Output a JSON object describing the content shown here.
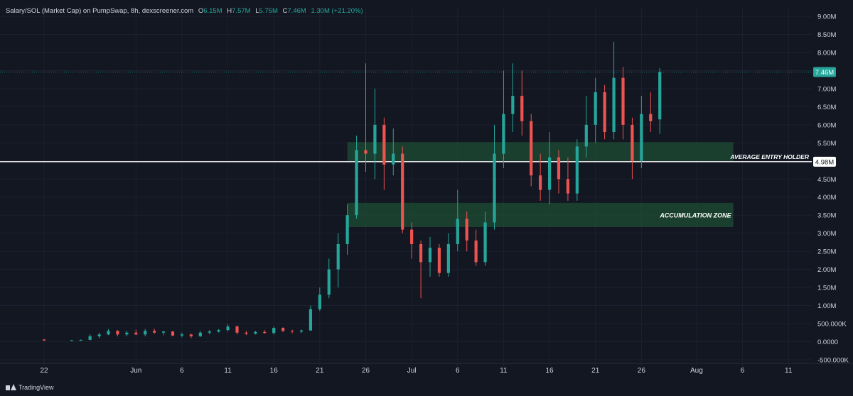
{
  "header": {
    "title": "Salary/SOL (Market Cap) on PumpSwap, 8h, dexscreener.com",
    "o_label": "O",
    "o_value": "6.15M",
    "h_label": "H",
    "h_value": "7.57M",
    "l_label": "L",
    "l_value": "5.75M",
    "c_label": "C",
    "c_value": "7.46M",
    "change": "1.30M (+21.20%)"
  },
  "footer": {
    "brand": "TradingView"
  },
  "colors": {
    "background": "#131722",
    "up": "#26a69a",
    "down": "#ef5350",
    "zone": "#1e4d33",
    "text": "#d1d4dc",
    "price_badge": "#26a69a",
    "entry_line": "#ffffff"
  },
  "chart_data": {
    "type": "candlestick",
    "title": "Salary/SOL (Market Cap) on PumpSwap, 8h, dexscreener.com",
    "xlabel": "",
    "ylabel": "",
    "x_range": [
      "2025-05-22",
      "2025-08-14"
    ],
    "ylim": [
      -600000,
      9100000
    ],
    "y_ticks": [
      "9.00M",
      "8.50M",
      "8.00M",
      "7.50M",
      "7.00M",
      "6.50M",
      "6.00M",
      "5.50M",
      "5.00M",
      "4.50M",
      "4.00M",
      "3.50M",
      "3.00M",
      "2.50M",
      "2.00M",
      "1.50M",
      "1.00M",
      "500.000K",
      "0.0000",
      "-500.000K"
    ],
    "y_tick_values": [
      9000000,
      8500000,
      8000000,
      7500000,
      7000000,
      6500000,
      6000000,
      5500000,
      5000000,
      4500000,
      4000000,
      3500000,
      3000000,
      2500000,
      2000000,
      1500000,
      1000000,
      500000,
      0,
      -500000
    ],
    "x_ticks": [
      {
        "label": "22",
        "date": "2025-05-22"
      },
      {
        "label": "Jun",
        "date": "2025-06-01"
      },
      {
        "label": "6",
        "date": "2025-06-06"
      },
      {
        "label": "11",
        "date": "2025-06-11"
      },
      {
        "label": "16",
        "date": "2025-06-16"
      },
      {
        "label": "21",
        "date": "2025-06-21"
      },
      {
        "label": "26",
        "date": "2025-06-26"
      },
      {
        "label": "Jul",
        "date": "2025-07-01"
      },
      {
        "label": "6",
        "date": "2025-07-06"
      },
      {
        "label": "11",
        "date": "2025-07-11"
      },
      {
        "label": "16",
        "date": "2025-07-16"
      },
      {
        "label": "21",
        "date": "2025-07-21"
      },
      {
        "label": "26",
        "date": "2025-07-26"
      },
      {
        "label": "Aug",
        "date": "2025-08-01"
      },
      {
        "label": "6",
        "date": "2025-08-06"
      },
      {
        "label": "11",
        "date": "2025-08-11"
      }
    ],
    "zones": [
      {
        "label": "",
        "from_date": "2025-06-24",
        "to_date": "2025-08-05",
        "low": 5000000,
        "high": 5520000
      },
      {
        "label": "ACCUMULATION ZONE",
        "from_date": "2025-06-24",
        "to_date": "2025-08-05",
        "low": 3170000,
        "high": 3840000
      }
    ],
    "hlines": [
      {
        "label": "AVERAGE ENTRY HOLDER",
        "value": 4980000,
        "badge": "4.98M"
      }
    ],
    "last_price": {
      "value": 7460000,
      "badge": "7.46M"
    },
    "candles": [
      [
        "2025-05-22",
        60000,
        70000,
        40000,
        30000
      ],
      [
        "2025-05-25",
        30000,
        50000,
        20000,
        35000
      ],
      [
        "2025-05-26",
        35000,
        60000,
        20000,
        50000
      ],
      [
        "2025-05-27",
        50000,
        200000,
        40000,
        150000
      ],
      [
        "2025-05-28",
        150000,
        250000,
        100000,
        200000
      ],
      [
        "2025-05-29",
        200000,
        350000,
        180000,
        300000
      ],
      [
        "2025-05-30",
        300000,
        320000,
        150000,
        200000
      ],
      [
        "2025-05-31",
        200000,
        300000,
        150000,
        250000
      ],
      [
        "2025-06-01",
        250000,
        330000,
        180000,
        200000
      ],
      [
        "2025-06-02",
        200000,
        350000,
        150000,
        300000
      ],
      [
        "2025-06-03",
        300000,
        360000,
        220000,
        250000
      ],
      [
        "2025-06-04",
        250000,
        300000,
        180000,
        280000
      ],
      [
        "2025-06-05",
        280000,
        300000,
        150000,
        170000
      ],
      [
        "2025-06-06",
        170000,
        250000,
        120000,
        200000
      ],
      [
        "2025-06-07",
        200000,
        220000,
        100000,
        150000
      ],
      [
        "2025-06-08",
        150000,
        300000,
        130000,
        250000
      ],
      [
        "2025-06-09",
        250000,
        320000,
        200000,
        280000
      ],
      [
        "2025-06-10",
        280000,
        350000,
        250000,
        320000
      ],
      [
        "2025-06-11",
        320000,
        480000,
        280000,
        420000
      ],
      [
        "2025-06-12",
        420000,
        450000,
        200000,
        250000
      ],
      [
        "2025-06-13",
        250000,
        300000,
        180000,
        220000
      ],
      [
        "2025-06-14",
        220000,
        300000,
        200000,
        270000
      ],
      [
        "2025-06-15",
        270000,
        320000,
        220000,
        240000
      ],
      [
        "2025-06-16",
        240000,
        420000,
        200000,
        380000
      ],
      [
        "2025-06-17",
        380000,
        400000,
        260000,
        300000
      ],
      [
        "2025-06-18",
        300000,
        330000,
        230000,
        280000
      ],
      [
        "2025-06-19",
        280000,
        330000,
        240000,
        310000
      ],
      [
        "2025-06-20",
        310000,
        1000000,
        300000,
        900000
      ],
      [
        "2025-06-21",
        900000,
        1500000,
        850000,
        1300000
      ],
      [
        "2025-06-22",
        1300000,
        2300000,
        1200000,
        2000000
      ],
      [
        "2025-06-23",
        2000000,
        3000000,
        1500000,
        2700000
      ],
      [
        "2025-06-24",
        2700000,
        3800000,
        2400000,
        3500000
      ],
      [
        "2025-06-25",
        3500000,
        5700000,
        3400000,
        5300000
      ],
      [
        "2025-06-26",
        5300000,
        7700000,
        4700000,
        5200000
      ],
      [
        "2025-06-27",
        5200000,
        7000000,
        4500000,
        6000000
      ],
      [
        "2025-06-28",
        6000000,
        6200000,
        4200000,
        4900000
      ],
      [
        "2025-06-29",
        4900000,
        5900000,
        4600000,
        5200000
      ],
      [
        "2025-06-30",
        5200000,
        5400000,
        3000000,
        3100000
      ],
      [
        "2025-07-01",
        3100000,
        3300000,
        2300000,
        2700000
      ],
      [
        "2025-07-02",
        2700000,
        2800000,
        1200000,
        2200000
      ],
      [
        "2025-07-03",
        2200000,
        2900000,
        1800000,
        2600000
      ],
      [
        "2025-07-04",
        2600000,
        2700000,
        1800000,
        1900000
      ],
      [
        "2025-07-05",
        1900000,
        3000000,
        1800000,
        2700000
      ],
      [
        "2025-07-06",
        2700000,
        4200000,
        2500000,
        3400000
      ],
      [
        "2025-07-07",
        3400000,
        3600000,
        2500000,
        2800000
      ],
      [
        "2025-07-08",
        2800000,
        3100000,
        2100000,
        2200000
      ],
      [
        "2025-07-09",
        2200000,
        3600000,
        2100000,
        3300000
      ],
      [
        "2025-07-10",
        3300000,
        6000000,
        3100000,
        5200000
      ],
      [
        "2025-07-11",
        5200000,
        7500000,
        4800000,
        6300000
      ],
      [
        "2025-07-12",
        6300000,
        7700000,
        5800000,
        6800000
      ],
      [
        "2025-07-13",
        6800000,
        7500000,
        5700000,
        6100000
      ],
      [
        "2025-07-14",
        6100000,
        6300000,
        4300000,
        4600000
      ],
      [
        "2025-07-15",
        4600000,
        5200000,
        3900000,
        4200000
      ],
      [
        "2025-07-16",
        4200000,
        5800000,
        3800000,
        5100000
      ],
      [
        "2025-07-17",
        5100000,
        5300000,
        4100000,
        4500000
      ],
      [
        "2025-07-18",
        4500000,
        5100000,
        3900000,
        4100000
      ],
      [
        "2025-07-19",
        4100000,
        5600000,
        3900000,
        5400000
      ],
      [
        "2025-07-20",
        5400000,
        6800000,
        5100000,
        6000000
      ],
      [
        "2025-07-21",
        6000000,
        7300000,
        5500000,
        6900000
      ],
      [
        "2025-07-22",
        6900000,
        7100000,
        5600000,
        5800000
      ],
      [
        "2025-07-23",
        5800000,
        8300000,
        5600000,
        7300000
      ],
      [
        "2025-07-24",
        7300000,
        7600000,
        5600000,
        6000000
      ],
      [
        "2025-07-25",
        6000000,
        6200000,
        4500000,
        5000000
      ],
      [
        "2025-07-26",
        5000000,
        6800000,
        4800000,
        6300000
      ],
      [
        "2025-07-27",
        6300000,
        6900000,
        5800000,
        6100000
      ],
      [
        "2025-07-28",
        6150000,
        7570000,
        5750000,
        7460000
      ]
    ]
  }
}
